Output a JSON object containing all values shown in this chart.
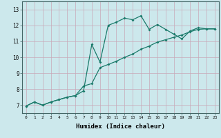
{
  "title": "",
  "xlabel": "Humidex (Indice chaleur)",
  "bg_color": "#cce8ec",
  "grid_color": "#c8a8b8",
  "line_color": "#1a7a6a",
  "xlim": [
    -0.5,
    23.5
  ],
  "ylim": [
    6.5,
    13.5
  ],
  "yticks": [
    7,
    8,
    9,
    10,
    11,
    12,
    13
  ],
  "xticks": [
    0,
    1,
    2,
    3,
    4,
    5,
    6,
    7,
    8,
    9,
    10,
    11,
    12,
    13,
    14,
    15,
    16,
    17,
    18,
    19,
    20,
    21,
    22,
    23
  ],
  "curve1_x": [
    0,
    1,
    2,
    3,
    4,
    5,
    6,
    7,
    8,
    9,
    10,
    11,
    12,
    13,
    14,
    15,
    16,
    17,
    18,
    19,
    20,
    21,
    22,
    23
  ],
  "curve1_y": [
    6.95,
    7.2,
    7.0,
    7.2,
    7.35,
    7.5,
    7.6,
    7.9,
    10.8,
    9.7,
    12.0,
    12.2,
    12.45,
    12.35,
    12.6,
    11.75,
    12.05,
    11.75,
    11.45,
    11.15,
    11.65,
    11.85,
    11.78,
    11.78
  ],
  "curve2_x": [
    0,
    1,
    2,
    3,
    4,
    5,
    6,
    7,
    8,
    9,
    10,
    11,
    12,
    13,
    14,
    15,
    16,
    17,
    18,
    19,
    20,
    21,
    22,
    23
  ],
  "curve2_y": [
    6.95,
    7.2,
    7.0,
    7.2,
    7.35,
    7.5,
    7.6,
    8.2,
    8.35,
    9.35,
    9.55,
    9.75,
    10.0,
    10.2,
    10.5,
    10.7,
    10.95,
    11.1,
    11.25,
    11.4,
    11.6,
    11.75,
    11.78,
    11.78
  ]
}
